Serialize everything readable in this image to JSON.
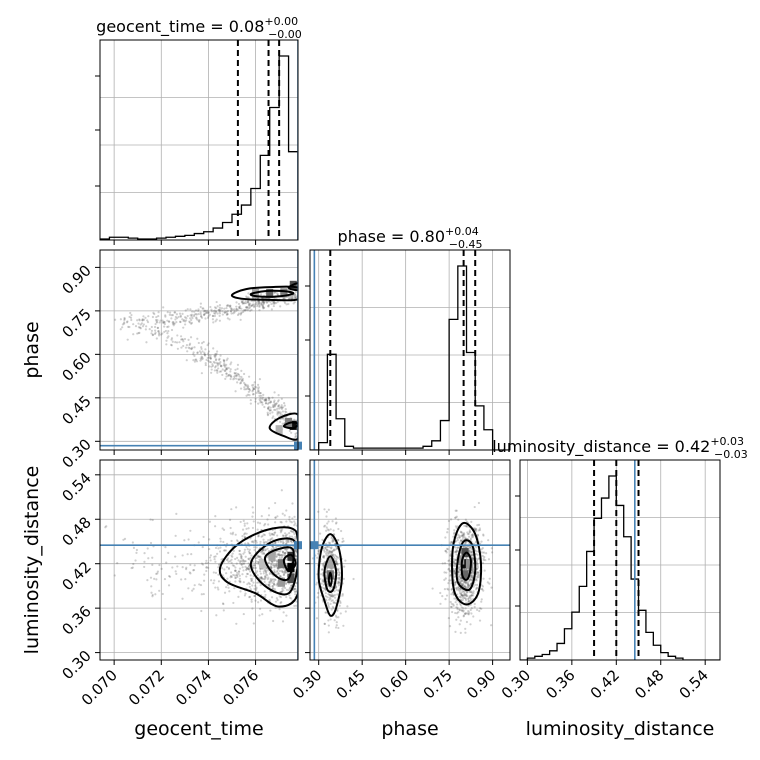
{
  "chart_data": {
    "type": "corner",
    "parameters": [
      {
        "name": "geocent_time",
        "label": "geocent_time",
        "range": [
          0.0694,
          0.0778
        ],
        "ticks": [
          0.07,
          0.072,
          0.074,
          0.076
        ],
        "tick_labels": [
          "0.070",
          "0.072",
          "0.074",
          "0.076"
        ]
      },
      {
        "name": "phase",
        "label": "phase",
        "range": [
          0.27,
          0.96
        ],
        "ticks": [
          0.3,
          0.45,
          0.6,
          0.75,
          0.9
        ],
        "tick_labels": [
          "0.30",
          "0.45",
          "0.60",
          "0.75",
          "0.90"
        ]
      },
      {
        "name": "luminosity_distance",
        "label": "luminosity_distance",
        "range": [
          0.29,
          0.56
        ],
        "ticks": [
          0.3,
          0.36,
          0.42,
          0.48,
          0.54
        ],
        "tick_labels": [
          "0.30",
          "0.36",
          "0.42",
          "0.48",
          "0.54"
        ]
      }
    ],
    "titles": [
      {
        "text": "geocent_time = 0.08",
        "sup": "+0.00",
        "sub": "−0.00"
      },
      {
        "text": "phase = 0.80",
        "sup": "+0.04",
        "sub": "−0.45"
      },
      {
        "text": "luminosity_distance = 0.42",
        "sup": "+0.03",
        "sub": "−0.03"
      }
    ],
    "truths": {
      "geocent_time": 0.0778,
      "phase": 0.285,
      "luminosity_distance": 0.445
    },
    "quantiles": {
      "geocent_time": [
        0.07525,
        0.07655,
        0.077
      ],
      "phase": [
        0.34,
        0.8,
        0.84
      ],
      "luminosity_distance": [
        0.39,
        0.42,
        0.45
      ]
    },
    "histograms": {
      "geocent_time": {
        "edges": [
          0.0694,
          0.0698,
          0.0702,
          0.0706,
          0.071,
          0.0714,
          0.0718,
          0.0722,
          0.0726,
          0.073,
          0.0734,
          0.0738,
          0.0742,
          0.0746,
          0.075,
          0.0754,
          0.0758,
          0.0762,
          0.0766,
          0.077,
          0.0774,
          0.0778
        ],
        "values": [
          0.5,
          1.5,
          1.5,
          1.0,
          0.5,
          0.5,
          1.0,
          1.5,
          2.0,
          2.5,
          3.5,
          4.5,
          6.5,
          9.5,
          14,
          19,
          28,
          46,
          72,
          100,
          48
        ]
      },
      "phase": {
        "edges": [
          0.27,
          0.3,
          0.33,
          0.36,
          0.39,
          0.42,
          0.45,
          0.48,
          0.51,
          0.54,
          0.57,
          0.6,
          0.63,
          0.66,
          0.69,
          0.72,
          0.75,
          0.78,
          0.81,
          0.84,
          0.87,
          0.9,
          0.93,
          0.96
        ],
        "values": [
          0,
          4,
          52,
          17,
          2,
          1,
          1,
          1,
          1,
          1,
          1,
          1,
          1,
          2,
          5,
          16,
          71,
          100,
          53,
          24,
          11,
          0,
          0
        ]
      },
      "luminosity_distance": {
        "edges": [
          0.29,
          0.3,
          0.31,
          0.32,
          0.33,
          0.34,
          0.35,
          0.36,
          0.37,
          0.38,
          0.39,
          0.4,
          0.41,
          0.42,
          0.43,
          0.44,
          0.45,
          0.46,
          0.47,
          0.48,
          0.49,
          0.5,
          0.51,
          0.52,
          0.53,
          0.54,
          0.55,
          0.56
        ],
        "values": [
          0,
          1,
          2,
          3,
          5,
          9,
          17,
          26,
          40,
          59,
          77,
          88,
          100,
          84,
          67,
          44,
          27,
          15,
          8,
          4,
          2,
          1,
          0,
          0,
          0,
          0,
          0
        ]
      }
    },
    "contours_2d": {
      "phase_vs_geocent_time": [
        [
          [
            0.075,
            0.805
          ],
          [
            0.0756,
            0.825
          ],
          [
            0.0766,
            0.832
          ],
          [
            0.0778,
            0.83
          ],
          [
            0.0778,
            0.79
          ],
          [
            0.0766,
            0.788
          ],
          [
            0.0754,
            0.792
          ]
        ],
        [
          [
            0.0758,
            0.808
          ],
          [
            0.0764,
            0.818
          ],
          [
            0.0772,
            0.818
          ],
          [
            0.0776,
            0.81
          ],
          [
            0.077,
            0.8
          ],
          [
            0.0761,
            0.8
          ]
        ],
        [
          [
            0.0774,
            0.83
          ],
          [
            0.0778,
            0.845
          ],
          [
            0.0778,
            0.822
          ]
        ],
        [
          [
            0.0766,
            0.345
          ],
          [
            0.077,
            0.38
          ],
          [
            0.0778,
            0.392
          ],
          [
            0.0778,
            0.31
          ],
          [
            0.0772,
            0.318
          ]
        ],
        [
          [
            0.0772,
            0.352
          ],
          [
            0.0775,
            0.365
          ],
          [
            0.0778,
            0.36
          ],
          [
            0.0776,
            0.345
          ]
        ]
      ],
      "luminosity_distance_vs_geocent_time": [
        [
          [
            0.0745,
            0.415
          ],
          [
            0.0752,
            0.445
          ],
          [
            0.0764,
            0.465
          ],
          [
            0.0775,
            0.468
          ],
          [
            0.0778,
            0.45
          ],
          [
            0.0778,
            0.38
          ],
          [
            0.077,
            0.362
          ],
          [
            0.076,
            0.38
          ],
          [
            0.0748,
            0.395
          ]
        ],
        [
          [
            0.0758,
            0.42
          ],
          [
            0.0766,
            0.448
          ],
          [
            0.0776,
            0.452
          ],
          [
            0.0778,
            0.42
          ],
          [
            0.0774,
            0.38
          ],
          [
            0.0764,
            0.39
          ]
        ],
        [
          [
            0.0764,
            0.428
          ],
          [
            0.077,
            0.44
          ],
          [
            0.0776,
            0.438
          ],
          [
            0.0774,
            0.4
          ],
          [
            0.0768,
            0.405
          ]
        ],
        [
          [
            0.0772,
            0.425
          ],
          [
            0.0775,
            0.432
          ],
          [
            0.0777,
            0.42
          ],
          [
            0.0774,
            0.41
          ]
        ]
      ],
      "luminosity_distance_vs_phase": [
        [
          [
            0.32,
            0.37
          ],
          [
            0.3,
            0.4
          ],
          [
            0.31,
            0.44
          ],
          [
            0.34,
            0.46
          ],
          [
            0.37,
            0.44
          ],
          [
            0.38,
            0.4
          ],
          [
            0.36,
            0.36
          ],
          [
            0.34,
            0.35
          ]
        ],
        [
          [
            0.33,
            0.385
          ],
          [
            0.32,
            0.41
          ],
          [
            0.34,
            0.43
          ],
          [
            0.36,
            0.41
          ],
          [
            0.35,
            0.385
          ]
        ],
        [
          [
            0.335,
            0.398
          ],
          [
            0.34,
            0.408
          ],
          [
            0.345,
            0.398
          ],
          [
            0.34,
            0.39
          ]
        ],
        [
          [
            0.77,
            0.38
          ],
          [
            0.76,
            0.42
          ],
          [
            0.77,
            0.455
          ],
          [
            0.8,
            0.475
          ],
          [
            0.84,
            0.46
          ],
          [
            0.86,
            0.42
          ],
          [
            0.85,
            0.38
          ],
          [
            0.81,
            0.365
          ]
        ],
        [
          [
            0.78,
            0.395
          ],
          [
            0.78,
            0.425
          ],
          [
            0.8,
            0.45
          ],
          [
            0.83,
            0.445
          ],
          [
            0.84,
            0.41
          ],
          [
            0.82,
            0.385
          ]
        ],
        [
          [
            0.795,
            0.405
          ],
          [
            0.795,
            0.425
          ],
          [
            0.81,
            0.435
          ],
          [
            0.825,
            0.425
          ],
          [
            0.82,
            0.405
          ],
          [
            0.808,
            0.398
          ]
        ]
      ]
    },
    "density_2d": {
      "phase_vs_geocent_time": [
        [
          0.076,
          0.81,
          0.35
        ],
        [
          0.0766,
          0.81,
          0.6
        ],
        [
          0.0772,
          0.812,
          0.5
        ],
        [
          0.0776,
          0.838,
          0.7
        ],
        [
          0.0776,
          0.355,
          0.95
        ],
        [
          0.0774,
          0.365,
          0.5
        ],
        [
          0.077,
          0.34,
          0.3
        ]
      ],
      "luminosity_distance_vs_geocent_time": [
        [
          0.0775,
          0.415,
          1.0
        ],
        [
          0.0775,
          0.43,
          0.8
        ],
        [
          0.0775,
          0.4,
          0.7
        ],
        [
          0.0771,
          0.42,
          0.55
        ],
        [
          0.0767,
          0.43,
          0.35
        ],
        [
          0.0763,
          0.42,
          0.25
        ],
        [
          0.0771,
          0.395,
          0.4
        ]
      ],
      "luminosity_distance_vs_phase": [
        [
          0.805,
          0.42,
          0.95
        ],
        [
          0.805,
          0.435,
          0.7
        ],
        [
          0.805,
          0.405,
          0.6
        ],
        [
          0.82,
          0.42,
          0.45
        ],
        [
          0.79,
          0.425,
          0.4
        ],
        [
          0.34,
          0.405,
          0.55
        ],
        [
          0.34,
          0.42,
          0.35
        ]
      ]
    },
    "grid": true
  }
}
